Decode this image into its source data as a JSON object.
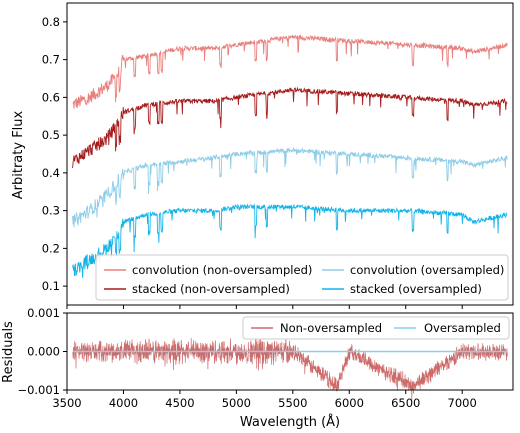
{
  "chart_data": [
    {
      "type": "line",
      "xlabel": "",
      "ylabel": "Arbitraty Flux",
      "xlim": [
        3500,
        7450
      ],
      "ylim": [
        0.05,
        0.85
      ],
      "yticks": [
        "0.1",
        "0.2",
        "0.3",
        "0.4",
        "0.5",
        "0.6",
        "0.7",
        "0.8"
      ],
      "ytick_values": [
        0.1,
        0.2,
        0.3,
        0.4,
        0.5,
        0.6,
        0.7,
        0.8
      ],
      "legend_position": "lower-center",
      "series": [
        {
          "name": "convolution (non-oversampled)",
          "color": "#e8807d",
          "x": [
            3550,
            3700,
            3850,
            3950,
            4000,
            4200,
            4500,
            4800,
            5000,
            5500,
            6000,
            6500,
            7000,
            7100,
            7400
          ],
          "y": [
            0.58,
            0.6,
            0.63,
            0.66,
            0.7,
            0.71,
            0.73,
            0.73,
            0.74,
            0.76,
            0.75,
            0.74,
            0.73,
            0.72,
            0.74
          ]
        },
        {
          "name": "stacked (non-oversampled)",
          "color": "#a61c1c",
          "x": [
            3550,
            3700,
            3850,
            3950,
            4000,
            4200,
            4500,
            4800,
            5000,
            5500,
            6000,
            6500,
            7000,
            7100,
            7400
          ],
          "y": [
            0.43,
            0.46,
            0.49,
            0.53,
            0.56,
            0.58,
            0.59,
            0.59,
            0.6,
            0.62,
            0.61,
            0.6,
            0.59,
            0.58,
            0.59
          ]
        },
        {
          "name": "convolution (oversampled)",
          "color": "#8ecde8",
          "x": [
            3550,
            3700,
            3850,
            3950,
            4000,
            4200,
            4500,
            4800,
            5000,
            5500,
            6000,
            6500,
            7000,
            7100,
            7400
          ],
          "y": [
            0.27,
            0.3,
            0.34,
            0.38,
            0.4,
            0.42,
            0.43,
            0.44,
            0.45,
            0.46,
            0.45,
            0.44,
            0.43,
            0.42,
            0.44
          ]
        },
        {
          "name": "stacked (oversampled)",
          "color": "#14b4ea",
          "x": [
            3550,
            3700,
            3850,
            3950,
            4000,
            4200,
            4500,
            4800,
            5000,
            5500,
            6000,
            6500,
            7000,
            7100,
            7400
          ],
          "y": [
            0.14,
            0.17,
            0.2,
            0.24,
            0.27,
            0.29,
            0.3,
            0.3,
            0.31,
            0.31,
            0.3,
            0.3,
            0.29,
            0.27,
            0.29
          ]
        }
      ]
    },
    {
      "type": "line",
      "xlabel": "Wavelength (Å)",
      "ylabel": "Residuals",
      "xlim": [
        3500,
        7450
      ],
      "ylim": [
        -0.001,
        0.001
      ],
      "xticks": [
        "3500",
        "4000",
        "4500",
        "5000",
        "5500",
        "6000",
        "6500",
        "7000"
      ],
      "xtick_values": [
        3500,
        4000,
        4500,
        5000,
        5500,
        6000,
        6500,
        7000
      ],
      "yticks": [
        "0.001",
        "0.000",
        "−0.001"
      ],
      "ytick_values": [
        0.001,
        0.0,
        -0.001
      ],
      "legend_position": "top-right",
      "series": [
        {
          "name": "Non-oversampled",
          "color": "#cd6a6a",
          "x": [
            3550,
            4000,
            4500,
            5000,
            5500,
            5890,
            6000,
            6563,
            7000,
            7400
          ],
          "y": [
            0.0,
            0.0,
            0.0,
            0.0,
            0.0,
            -0.0009,
            0.0,
            -0.0009,
            0.0,
            0.0
          ]
        },
        {
          "name": "Oversampled",
          "color": "#8ecde8",
          "x": [
            3550,
            7400
          ],
          "y": [
            0.0,
            0.0
          ]
        }
      ]
    }
  ]
}
